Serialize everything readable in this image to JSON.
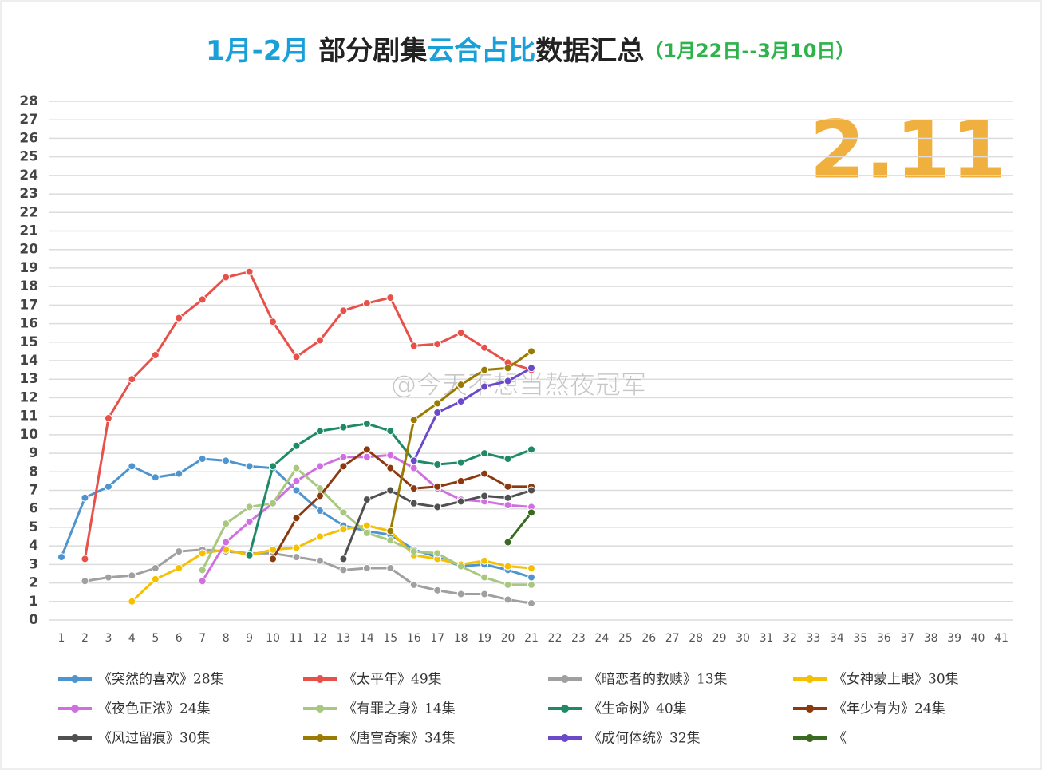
{
  "chart_data": {
    "type": "line",
    "title_parts": [
      {
        "text": "1月-2月",
        "color": "#1aa0d8"
      },
      {
        "text": " 部分剧集",
        "color": "#222222"
      },
      {
        "text": "云合占比",
        "color": "#1aa0d8"
      },
      {
        "text": "数据汇总",
        "color": "#222222"
      }
    ],
    "subtitle": "（1月22日--3月10日）",
    "subtitle_color": "#2db34a",
    "annotation": "2.11",
    "annotation_color": "#f0b040",
    "watermark": "@今天不想当熬夜冠军",
    "x": [
      1,
      2,
      3,
      4,
      5,
      6,
      7,
      8,
      9,
      10,
      11,
      12,
      13,
      14,
      15,
      16,
      17,
      18,
      19,
      20,
      21
    ],
    "xlim": [
      1,
      41
    ],
    "xticks": [
      1,
      2,
      3,
      4,
      5,
      6,
      7,
      8,
      9,
      10,
      11,
      12,
      13,
      14,
      15,
      16,
      17,
      18,
      19,
      20,
      21,
      22,
      23,
      24,
      25,
      26,
      27,
      28,
      29,
      30,
      31,
      32,
      33,
      34,
      35,
      36,
      37,
      38,
      39,
      40,
      41
    ],
    "ylim": [
      0,
      28
    ],
    "yticks": [
      0,
      1,
      2,
      3,
      4,
      5,
      6,
      7,
      8,
      9,
      10,
      11,
      12,
      13,
      14,
      15,
      16,
      17,
      18,
      19,
      20,
      21,
      22,
      23,
      24,
      25,
      26,
      27,
      28
    ],
    "grid": true,
    "series": [
      {
        "name": "《突然的喜欢》28集",
        "color": "#4e95d0",
        "values": [
          3.4,
          6.6,
          7.2,
          8.3,
          7.7,
          7.9,
          8.7,
          8.6,
          8.3,
          8.2,
          7.0,
          5.9,
          5.1,
          4.8,
          4.6,
          3.8,
          3.4,
          2.9,
          3.0,
          2.7,
          2.3
        ]
      },
      {
        "name": "《太平年》49集",
        "color": "#e8504a",
        "values": [
          null,
          3.3,
          10.9,
          13.0,
          14.3,
          16.3,
          17.3,
          18.5,
          18.8,
          16.1,
          14.2,
          15.1,
          16.7,
          17.1,
          17.4,
          14.8,
          14.9,
          15.5,
          14.7,
          13.9,
          13.5
        ]
      },
      {
        "name": "《暗恋者的救赎》13集",
        "color": "#a0a0a0",
        "values": [
          null,
          2.1,
          2.3,
          2.4,
          2.8,
          3.7,
          3.8,
          3.7,
          3.6,
          3.6,
          3.4,
          3.2,
          2.7,
          2.8,
          2.8,
          1.9,
          1.6,
          1.4,
          1.4,
          1.1,
          0.9
        ]
      },
      {
        "name": "《女神蒙上眼》30集",
        "color": "#f5c000",
        "values": [
          null,
          null,
          null,
          1.0,
          2.2,
          2.8,
          3.6,
          3.8,
          3.5,
          3.8,
          3.9,
          4.5,
          4.9,
          5.1,
          4.8,
          3.5,
          3.3,
          3.0,
          3.2,
          2.9,
          2.8
        ]
      },
      {
        "name": "《夜色正浓》24集",
        "color": "#d070e0",
        "values": [
          null,
          null,
          null,
          null,
          null,
          null,
          2.1,
          4.2,
          5.3,
          6.3,
          7.5,
          8.3,
          8.8,
          8.8,
          8.9,
          8.2,
          7.1,
          6.5,
          6.4,
          6.2,
          6.1
        ]
      },
      {
        "name": "《有罪之身》14集",
        "color": "#a8c880",
        "values": [
          null,
          null,
          null,
          null,
          null,
          null,
          2.7,
          5.2,
          6.1,
          6.3,
          8.2,
          7.1,
          5.8,
          4.7,
          4.3,
          3.7,
          3.6,
          2.9,
          2.3,
          1.9,
          1.9
        ]
      },
      {
        "name": "《生命树》40集",
        "color": "#1e8a68",
        "values": [
          null,
          null,
          null,
          null,
          null,
          null,
          null,
          null,
          3.5,
          8.3,
          9.4,
          10.2,
          10.4,
          10.6,
          10.2,
          8.6,
          8.4,
          8.5,
          9.0,
          8.7,
          9.2
        ]
      },
      {
        "name": "《年少有为》24集",
        "color": "#8b3a10",
        "values": [
          null,
          null,
          null,
          null,
          null,
          null,
          null,
          null,
          null,
          3.3,
          5.5,
          6.7,
          8.3,
          9.2,
          8.2,
          7.1,
          7.2,
          7.5,
          7.9,
          7.2,
          7.2
        ]
      },
      {
        "name": "《风过留痕》30集",
        "color": "#505050",
        "values": [
          null,
          null,
          null,
          null,
          null,
          null,
          null,
          null,
          null,
          null,
          null,
          null,
          3.3,
          6.5,
          7.0,
          6.3,
          6.1,
          6.4,
          6.7,
          6.6,
          7.0
        ]
      },
      {
        "name": "《唐宫奇案》34集",
        "color": "#9a7a00",
        "values": [
          null,
          null,
          null,
          null,
          null,
          null,
          null,
          null,
          null,
          null,
          null,
          null,
          null,
          null,
          4.8,
          10.8,
          11.7,
          12.7,
          13.5,
          13.6,
          14.5
        ]
      },
      {
        "name": "《成何体统》32集",
        "color": "#6a4ac8",
        "values": [
          null,
          null,
          null,
          null,
          null,
          null,
          null,
          null,
          null,
          null,
          null,
          null,
          null,
          null,
          null,
          8.6,
          11.2,
          11.8,
          12.6,
          12.9,
          13.6
        ]
      },
      {
        "name": "《",
        "color": "#3a6a20",
        "values": [
          null,
          null,
          null,
          null,
          null,
          null,
          null,
          null,
          null,
          null,
          null,
          null,
          null,
          null,
          null,
          null,
          null,
          null,
          null,
          4.2,
          5.8
        ]
      }
    ]
  }
}
